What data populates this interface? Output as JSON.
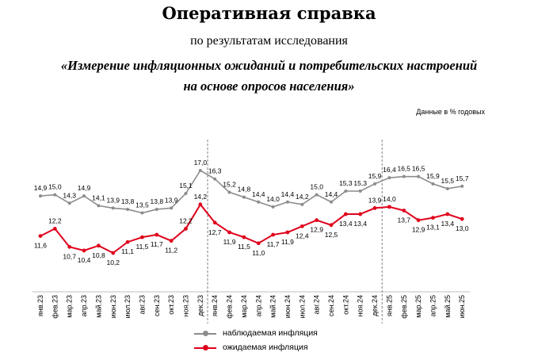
{
  "header": {
    "title": "Оперативная справка",
    "subtitle": "по результатам исследования",
    "topic_line1": "«Измерение инфляционных ожиданий и потребительских настроений",
    "topic_line2": "на основе опросов населения»",
    "units": "Данные в % годовых"
  },
  "colors": {
    "observed": "#8c8c8c",
    "expected": "#e0001b",
    "divider": "#7f7f7f"
  },
  "chart_data": {
    "type": "line",
    "title": "",
    "xlabel": "",
    "ylabel": "",
    "categories": [
      "янв.23",
      "фев.23",
      "мар.23",
      "апр.23",
      "май.23",
      "июн.23",
      "июл.23",
      "авг.23",
      "сен.23",
      "окт.23",
      "ноя.23",
      "дек.23",
      "янв.24",
      "фев.24",
      "мар.24",
      "апр.24",
      "май.24",
      "июн.24",
      "июл.24",
      "авг.24",
      "сен.24",
      "окт.24",
      "ноя.24",
      "дек.24",
      "янв.25",
      "фев.25",
      "мар.25",
      "апр.25",
      "май.25",
      "июн.25"
    ],
    "series": [
      {
        "name": "наблюдаемая инфляция",
        "values": [
          14.9,
          15.0,
          14.3,
          14.9,
          14.1,
          13.9,
          13.8,
          13.5,
          13.8,
          13.9,
          15.1,
          17.0,
          16.3,
          15.2,
          14.8,
          14.4,
          14.0,
          14.4,
          14.2,
          15.0,
          14.4,
          15.3,
          15.3,
          15.9,
          16.4,
          16.5,
          16.5,
          15.9,
          15.5,
          15.7
        ],
        "labels": [
          "14,9",
          "15,0",
          "14,3",
          "14,9",
          "14,1",
          "13,9",
          "13,8",
          "13,5",
          "13,8",
          "13,9",
          "15,1",
          "17,0",
          "16,3",
          "15,2",
          "14,8",
          "14,4",
          "14,0",
          "14,4",
          "14,2",
          "15,0",
          "14,4",
          "15,3",
          "15,3",
          "15,9",
          "16,4",
          "16,5",
          "16,5",
          "15,9",
          "15,5",
          "15,7"
        ]
      },
      {
        "name": "ожидаемая инфляция",
        "values": [
          11.6,
          12.2,
          10.7,
          10.4,
          10.8,
          10.2,
          11.1,
          11.5,
          11.7,
          11.2,
          12.2,
          14.2,
          12.7,
          11.9,
          11.5,
          11.0,
          11.7,
          11.9,
          12.4,
          12.9,
          12.5,
          13.4,
          13.4,
          13.9,
          14.0,
          13.7,
          12.9,
          13.1,
          13.4,
          13.0
        ],
        "labels": [
          "11,6",
          "12,2",
          "10,7",
          "10,4",
          "10,8",
          "10,2",
          "11,1",
          "11,5",
          "11,7",
          "11,2",
          "12,2",
          "14,2",
          "12,7",
          "11,9",
          "11,5",
          "11,0",
          "11,7",
          "11,9",
          "12,4",
          "12,9",
          "12,5",
          "13,4",
          "13,4",
          "13,9",
          "14,0",
          "13,7",
          "12,9",
          "13,1",
          "13,4",
          "13,0"
        ]
      }
    ],
    "year_dividers_after": [
      "дек.23",
      "дек.24"
    ],
    "grid": false,
    "legend_position": "bottom"
  }
}
